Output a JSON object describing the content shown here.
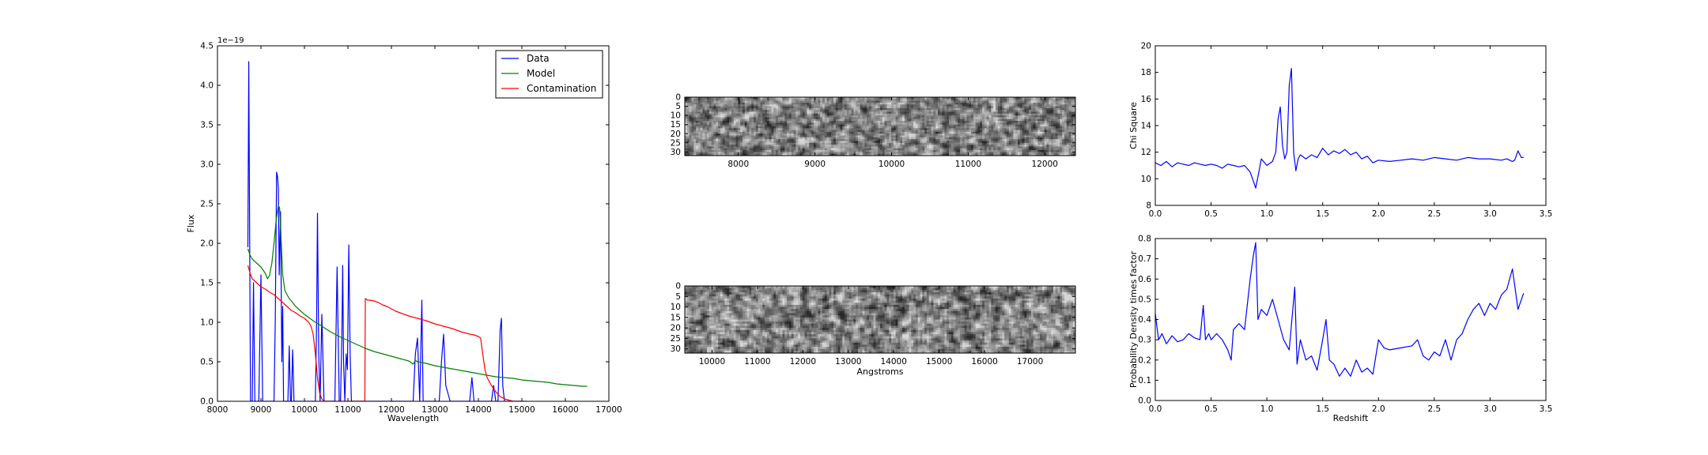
{
  "chart_data": [
    {
      "type": "line",
      "xlabel": "Wavelength",
      "ylabel": "Flux",
      "offset_label": "1e−19",
      "xlim": [
        8000,
        17000
      ],
      "ylim": [
        0,
        4.5
      ],
      "xticks": [
        8000,
        9000,
        10000,
        11000,
        12000,
        13000,
        14000,
        15000,
        16000,
        17000
      ],
      "xtick_labels": [
        "8000",
        "9000",
        "10000",
        "11000",
        "12000",
        "13000",
        "14000",
        "15000",
        "16000",
        "17000"
      ],
      "yticks": [
        0,
        0.5,
        1.0,
        1.5,
        2.0,
        2.5,
        3.0,
        3.5,
        4.0,
        4.5
      ],
      "ytick_labels": [
        "0.0",
        "0.5",
        "1.0",
        "1.5",
        "2.0",
        "2.5",
        "3.0",
        "3.5",
        "4.0",
        "4.5"
      ],
      "legend_position": "top-right",
      "series": [
        {
          "name": "Data",
          "color": "#0000ff",
          "x": [
            8700,
            8720,
            8760,
            8800,
            8830,
            8860,
            8900,
            8950,
            9000,
            9040,
            9080,
            9120,
            9150,
            9200,
            9250,
            9300,
            9330,
            9360,
            9380,
            9400,
            9420,
            9450,
            9480,
            9500,
            9520,
            9550,
            9580,
            9620,
            9650,
            9680,
            9700,
            9730,
            9760,
            9800,
            9850,
            9900,
            9950,
            10000,
            10050,
            10100,
            10150,
            10200,
            10250,
            10280,
            10300,
            10330,
            10360,
            10400,
            10450,
            10500,
            10550,
            10600,
            10650,
            10700,
            10750,
            10800,
            10830,
            10860,
            10880,
            10900,
            10930,
            10960,
            10990,
            11020,
            11050,
            11080,
            11100,
            11120,
            11150,
            11200,
            11250,
            11300,
            11350,
            11400,
            11450,
            11500,
            11600,
            11700,
            11800,
            11900,
            12000,
            12100,
            12200,
            12300,
            12400,
            12500,
            12550,
            12600,
            12650,
            12700,
            12730,
            12760,
            12800,
            12850,
            12900,
            13000,
            13100,
            13150,
            13200,
            13250,
            13300,
            13350,
            13400,
            13500,
            13600,
            13700,
            13800,
            13850,
            13900,
            13950,
            14000,
            14100,
            14200,
            14300,
            14350,
            14400,
            14450,
            14500,
            14530,
            14560,
            14600,
            14650,
            14700,
            14800,
            14900,
            15000,
            15100
          ],
          "y": [
            1.95,
            4.3,
            0.0,
            0.0,
            1.5,
            0.0,
            0.0,
            0.0,
            1.6,
            0.0,
            0.0,
            0.0,
            0.0,
            0.0,
            0.0,
            0.0,
            1.0,
            2.9,
            2.85,
            2.7,
            1.6,
            2.4,
            0.5,
            1.2,
            0.0,
            0.0,
            0.0,
            0.0,
            0.7,
            0.0,
            0.0,
            0.65,
            0.0,
            0.0,
            0.0,
            0.0,
            0.0,
            0.0,
            0.0,
            0.0,
            0.0,
            0.0,
            0.0,
            1.0,
            2.38,
            0.6,
            0.0,
            1.1,
            0.0,
            0.0,
            0.0,
            0.0,
            0.0,
            0.0,
            1.7,
            0.0,
            0.0,
            0.8,
            1.72,
            0.5,
            0.0,
            0.6,
            0.4,
            1.98,
            0.6,
            0.0,
            0.0,
            0.0,
            0.0,
            0.0,
            0.0,
            0.0,
            0.0,
            0.0,
            0.0,
            0.0,
            0.0,
            0.0,
            0.0,
            0.0,
            0.0,
            0.0,
            0.0,
            0.0,
            0.0,
            0.0,
            0.6,
            0.8,
            0.0,
            1.28,
            0.0,
            0.0,
            0.0,
            0.0,
            0.0,
            0.0,
            0.0,
            0.5,
            0.85,
            0.2,
            0.1,
            0.0,
            0.0,
            0.0,
            0.0,
            0.0,
            0.0,
            0.3,
            0.0,
            0.0,
            0.0,
            0.0,
            0.0,
            0.0,
            0.2,
            0.0,
            0.0,
            0.9,
            1.05,
            0.2,
            0.0,
            0.0,
            0.0,
            0.0,
            0.0,
            0.0,
            0.0
          ]
        },
        {
          "name": "Model",
          "color": "#008000",
          "x": [
            8700,
            8750,
            8800,
            8900,
            9000,
            9100,
            9150,
            9200,
            9250,
            9300,
            9350,
            9400,
            9430,
            9460,
            9500,
            9550,
            9600,
            9650,
            9700,
            9800,
            9900,
            10000,
            10200,
            10400,
            10600,
            10800,
            11000,
            11200,
            11400,
            11600,
            11800,
            12000,
            12200,
            12400,
            12500,
            12550,
            12600,
            12800,
            13000,
            13200,
            13400,
            13600,
            13800,
            14000,
            14200,
            14400,
            14600,
            14800,
            15000,
            15200,
            15400,
            15600,
            15800,
            16000,
            16200,
            16400,
            16500
          ],
          "y": [
            1.93,
            1.85,
            1.8,
            1.75,
            1.7,
            1.62,
            1.55,
            1.6,
            1.75,
            2.0,
            2.3,
            2.48,
            2.45,
            2.1,
            1.6,
            1.4,
            1.35,
            1.3,
            1.27,
            1.2,
            1.15,
            1.1,
            1.02,
            0.95,
            0.88,
            0.82,
            0.77,
            0.72,
            0.67,
            0.63,
            0.6,
            0.57,
            0.54,
            0.51,
            0.47,
            0.52,
            0.5,
            0.48,
            0.45,
            0.43,
            0.41,
            0.39,
            0.37,
            0.35,
            0.33,
            0.31,
            0.3,
            0.29,
            0.27,
            0.26,
            0.25,
            0.24,
            0.22,
            0.21,
            0.2,
            0.19,
            0.19
          ]
        },
        {
          "name": "Contamination",
          "color": "#ff0000",
          "x": [
            8700,
            8750,
            8800,
            8900,
            9000,
            9100,
            9200,
            9300,
            9400,
            9500,
            9600,
            9700,
            9800,
            9900,
            10000,
            10100,
            10150,
            10200,
            10250,
            10300,
            10350,
            10400,
            10450,
            10500,
            10600,
            10800,
            11000,
            11200,
            11350,
            11390,
            11400,
            11450,
            11500,
            11600,
            11700,
            11800,
            11900,
            12000,
            12100,
            12200,
            12400,
            12600,
            12800,
            13000,
            13200,
            13400,
            13600,
            13800,
            13900,
            14000,
            14050,
            14100,
            14150,
            14200,
            14300,
            14400,
            14500,
            14600,
            14800,
            15000
          ],
          "y": [
            1.72,
            1.62,
            1.55,
            1.5,
            1.45,
            1.42,
            1.38,
            1.35,
            1.3,
            1.25,
            1.2,
            1.15,
            1.12,
            1.08,
            1.05,
            1.0,
            0.95,
            0.85,
            0.6,
            0.3,
            0.1,
            0.03,
            0.0,
            0.0,
            0.0,
            0.0,
            0.0,
            0.0,
            0.0,
            0.0,
            1.3,
            1.28,
            1.28,
            1.27,
            1.25,
            1.22,
            1.2,
            1.17,
            1.14,
            1.12,
            1.08,
            1.05,
            1.02,
            0.98,
            0.95,
            0.92,
            0.88,
            0.85,
            0.84,
            0.82,
            0.8,
            0.6,
            0.4,
            0.3,
            0.2,
            0.12,
            0.06,
            0.03,
            0.0,
            0.0
          ]
        }
      ]
    },
    {
      "type": "heatmap",
      "xlabel": "",
      "ylabel": "",
      "xlim": [
        7300,
        12400
      ],
      "ylim": [
        32,
        0
      ],
      "xticks": [
        8000,
        9000,
        10000,
        11000,
        12000
      ],
      "xtick_labels": [
        "8000",
        "9000",
        "10000",
        "11000",
        "12000"
      ],
      "yticks": [
        0,
        5,
        10,
        15,
        20,
        25,
        30
      ],
      "ytick_labels": [
        "0",
        "5",
        "10",
        "15",
        "20",
        "25",
        "30"
      ],
      "colormap": "gray",
      "rows": 32,
      "cols": 176
    },
    {
      "type": "heatmap",
      "xlabel": "Angstroms",
      "ylabel": "",
      "xlim": [
        9400,
        18000
      ],
      "ylim": [
        32,
        0
      ],
      "xticks": [
        10000,
        11000,
        12000,
        13000,
        14000,
        15000,
        16000,
        17000
      ],
      "xtick_labels": [
        "10000",
        "11000",
        "12000",
        "13000",
        "14000",
        "15000",
        "16000",
        "17000"
      ],
      "yticks": [
        0,
        5,
        10,
        15,
        20,
        25,
        30
      ],
      "ytick_labels": [
        "0",
        "5",
        "10",
        "15",
        "20",
        "25",
        "30"
      ],
      "colormap": "gray",
      "rows": 32,
      "cols": 176
    },
    {
      "type": "line",
      "xlabel": "",
      "ylabel": "Chi Square",
      "xlim": [
        0,
        3.5
      ],
      "ylim": [
        8,
        20
      ],
      "xticks": [
        0,
        0.5,
        1.0,
        1.5,
        2.0,
        2.5,
        3.0,
        3.5
      ],
      "xtick_labels": [
        "0.0",
        "0.5",
        "1.0",
        "1.5",
        "2.0",
        "2.5",
        "3.0",
        "3.5"
      ],
      "yticks": [
        8,
        10,
        12,
        14,
        16,
        18,
        20
      ],
      "ytick_labels": [
        "8",
        "10",
        "12",
        "14",
        "16",
        "18",
        "20"
      ],
      "series": [
        {
          "color": "#0000ff",
          "x": [
            0.0,
            0.05,
            0.1,
            0.15,
            0.2,
            0.25,
            0.3,
            0.35,
            0.4,
            0.45,
            0.5,
            0.55,
            0.6,
            0.65,
            0.7,
            0.75,
            0.8,
            0.85,
            0.88,
            0.9,
            0.93,
            0.95,
            1.0,
            1.05,
            1.08,
            1.1,
            1.12,
            1.14,
            1.16,
            1.18,
            1.2,
            1.22,
            1.24,
            1.26,
            1.28,
            1.3,
            1.35,
            1.4,
            1.45,
            1.5,
            1.55,
            1.6,
            1.65,
            1.7,
            1.75,
            1.8,
            1.85,
            1.9,
            1.95,
            2.0,
            2.1,
            2.2,
            2.3,
            2.4,
            2.5,
            2.6,
            2.7,
            2.8,
            2.9,
            3.0,
            3.1,
            3.15,
            3.2,
            3.22,
            3.25,
            3.28,
            3.3
          ],
          "y": [
            11.2,
            11.0,
            11.3,
            10.9,
            11.2,
            11.1,
            11.0,
            11.2,
            11.1,
            11.0,
            11.1,
            11.0,
            10.8,
            11.1,
            11.0,
            10.9,
            11.0,
            10.5,
            9.8,
            9.3,
            10.6,
            11.5,
            11.0,
            11.3,
            12.0,
            14.5,
            15.4,
            12.5,
            11.5,
            12.0,
            17.0,
            18.3,
            12.0,
            10.6,
            11.5,
            11.8,
            11.5,
            11.8,
            11.6,
            12.3,
            11.8,
            12.1,
            11.9,
            12.2,
            11.8,
            12.0,
            11.5,
            11.7,
            11.2,
            11.4,
            11.3,
            11.4,
            11.5,
            11.4,
            11.6,
            11.5,
            11.4,
            11.6,
            11.5,
            11.5,
            11.4,
            11.5,
            11.3,
            11.4,
            12.1,
            11.6,
            11.6
          ]
        }
      ]
    },
    {
      "type": "line",
      "xlabel": "Redshift",
      "ylabel": "Probability Density times factor",
      "xlim": [
        0,
        3.5
      ],
      "ylim": [
        0,
        0.8
      ],
      "xticks": [
        0,
        0.5,
        1.0,
        1.5,
        2.0,
        2.5,
        3.0,
        3.5
      ],
      "xtick_labels": [
        "0.0",
        "0.5",
        "1.0",
        "1.5",
        "2.0",
        "2.5",
        "3.0",
        "3.5"
      ],
      "yticks": [
        0,
        0.1,
        0.2,
        0.3,
        0.4,
        0.5,
        0.6,
        0.7,
        0.8
      ],
      "ytick_labels": [
        "0.0",
        "0.1",
        "0.2",
        "0.3",
        "0.4",
        "0.5",
        "0.6",
        "0.7",
        "0.8"
      ],
      "series": [
        {
          "color": "#0000ff",
          "x": [
            0.0,
            0.03,
            0.06,
            0.1,
            0.15,
            0.2,
            0.25,
            0.3,
            0.35,
            0.4,
            0.43,
            0.45,
            0.48,
            0.5,
            0.55,
            0.6,
            0.65,
            0.68,
            0.7,
            0.75,
            0.8,
            0.85,
            0.88,
            0.9,
            0.92,
            0.95,
            1.0,
            1.05,
            1.1,
            1.15,
            1.2,
            1.25,
            1.27,
            1.3,
            1.35,
            1.4,
            1.45,
            1.5,
            1.53,
            1.56,
            1.6,
            1.65,
            1.7,
            1.75,
            1.8,
            1.85,
            1.9,
            1.95,
            2.0,
            2.05,
            2.1,
            2.2,
            2.3,
            2.35,
            2.4,
            2.45,
            2.5,
            2.55,
            2.6,
            2.65,
            2.7,
            2.75,
            2.8,
            2.85,
            2.9,
            2.95,
            3.0,
            3.05,
            3.1,
            3.15,
            3.2,
            3.25,
            3.3
          ],
          "y": [
            0.43,
            0.3,
            0.33,
            0.28,
            0.32,
            0.29,
            0.3,
            0.33,
            0.31,
            0.3,
            0.47,
            0.3,
            0.33,
            0.3,
            0.33,
            0.3,
            0.25,
            0.2,
            0.35,
            0.38,
            0.35,
            0.6,
            0.72,
            0.78,
            0.4,
            0.45,
            0.42,
            0.5,
            0.4,
            0.3,
            0.25,
            0.56,
            0.18,
            0.3,
            0.2,
            0.22,
            0.15,
            0.3,
            0.4,
            0.2,
            0.18,
            0.12,
            0.16,
            0.12,
            0.2,
            0.14,
            0.16,
            0.13,
            0.3,
            0.26,
            0.25,
            0.26,
            0.27,
            0.3,
            0.22,
            0.2,
            0.24,
            0.22,
            0.3,
            0.2,
            0.3,
            0.33,
            0.4,
            0.45,
            0.48,
            0.42,
            0.48,
            0.45,
            0.52,
            0.55,
            0.65,
            0.45,
            0.53
          ]
        }
      ]
    }
  ]
}
